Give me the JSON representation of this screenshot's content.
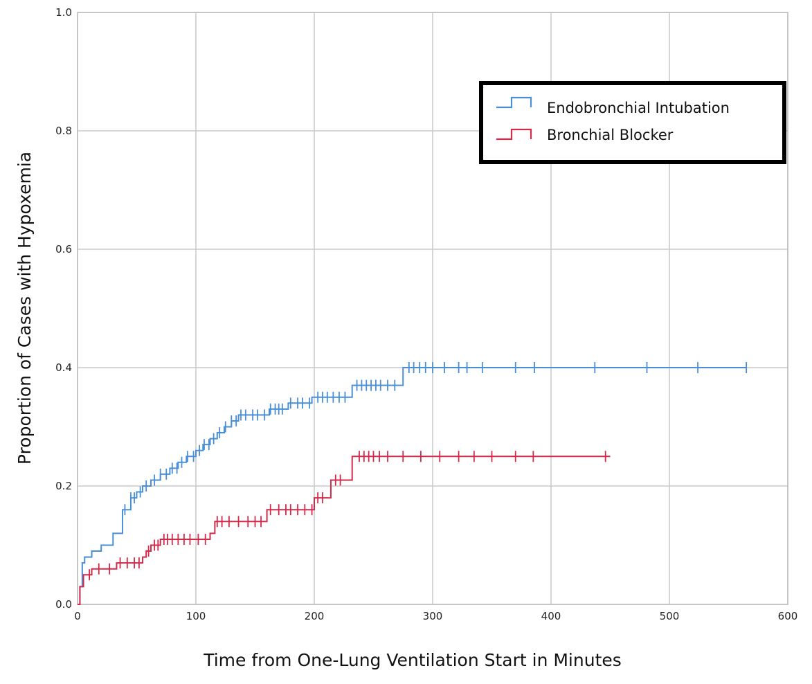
{
  "chart_data": {
    "type": "line",
    "subtype": "step",
    "title": "",
    "xlabel": "Time from One-Lung Ventilation Start in Minutes",
    "ylabel": "Proportion of Cases with Hypoxemia",
    "xlim": [
      0,
      600
    ],
    "ylim": [
      0,
      1.0
    ],
    "xticks": [
      "0",
      "100",
      "200",
      "300",
      "400",
      "500",
      "600"
    ],
    "yticks": [
      "0.0",
      "0.2",
      "0.4",
      "0.6",
      "0.8",
      "1.0"
    ],
    "grid": true,
    "legend_position": "top-right",
    "series": [
      {
        "name": "Endobronchial Intubation",
        "color": "#4a8fd6",
        "steps": [
          [
            0,
            0
          ],
          [
            2,
            0.03
          ],
          [
            4,
            0.07
          ],
          [
            6,
            0.08
          ],
          [
            12,
            0.09
          ],
          [
            20,
            0.1
          ],
          [
            30,
            0.12
          ],
          [
            38,
            0.16
          ],
          [
            45,
            0.18
          ],
          [
            50,
            0.19
          ],
          [
            55,
            0.2
          ],
          [
            62,
            0.21
          ],
          [
            70,
            0.22
          ],
          [
            78,
            0.23
          ],
          [
            85,
            0.24
          ],
          [
            92,
            0.25
          ],
          [
            100,
            0.26
          ],
          [
            106,
            0.27
          ],
          [
            112,
            0.28
          ],
          [
            118,
            0.29
          ],
          [
            124,
            0.3
          ],
          [
            130,
            0.31
          ],
          [
            136,
            0.32
          ],
          [
            162,
            0.33
          ],
          [
            178,
            0.34
          ],
          [
            198,
            0.35
          ],
          [
            232,
            0.37
          ],
          [
            275,
            0.4
          ],
          [
            565,
            0.4
          ]
        ],
        "censored_x": [
          40,
          45,
          48,
          53,
          58,
          65,
          70,
          75,
          80,
          84,
          88,
          93,
          98,
          103,
          107,
          111,
          115,
          120,
          125,
          130,
          134,
          138,
          142,
          148,
          152,
          158,
          163,
          167,
          170,
          173,
          180,
          186,
          190,
          196,
          203,
          207,
          211,
          216,
          221,
          226,
          236,
          240,
          244,
          248,
          252,
          256,
          262,
          268,
          280,
          284,
          289,
          294,
          300,
          310,
          322,
          329,
          342,
          370,
          386,
          437,
          481,
          524,
          565
        ]
      },
      {
        "name": "Bronchial Blocker",
        "color": "#d42a4a",
        "steps": [
          [
            0,
            0
          ],
          [
            2,
            0.03
          ],
          [
            5,
            0.05
          ],
          [
            12,
            0.06
          ],
          [
            33,
            0.07
          ],
          [
            55,
            0.08
          ],
          [
            58,
            0.09
          ],
          [
            62,
            0.1
          ],
          [
            70,
            0.11
          ],
          [
            112,
            0.12
          ],
          [
            116,
            0.14
          ],
          [
            160,
            0.16
          ],
          [
            200,
            0.18
          ],
          [
            214,
            0.21
          ],
          [
            232,
            0.25
          ],
          [
            450,
            0.25
          ]
        ],
        "censored_x": [
          10,
          18,
          27,
          36,
          42,
          48,
          52,
          60,
          65,
          68,
          73,
          76,
          80,
          85,
          90,
          95,
          102,
          108,
          118,
          122,
          128,
          136,
          144,
          150,
          155,
          163,
          170,
          176,
          180,
          186,
          192,
          198,
          203,
          207,
          218,
          222,
          238,
          242,
          246,
          250,
          255,
          262,
          275,
          290,
          306,
          322,
          335,
          350,
          370,
          385,
          446
        ]
      }
    ]
  }
}
